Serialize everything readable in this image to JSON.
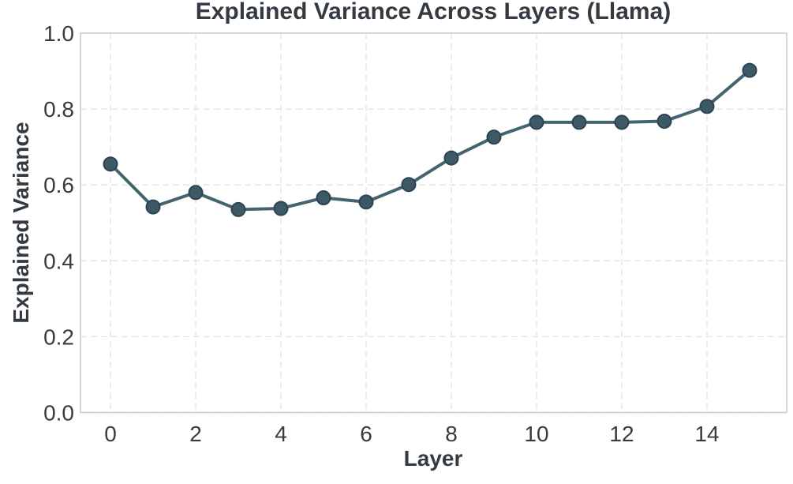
{
  "figure": {
    "background": "#ffffff"
  },
  "chart_data": {
    "type": "line",
    "title": "Explained Variance Across Layers (Llama)",
    "xlabel": "Layer",
    "ylabel": "Explained Variance",
    "x": [
      0,
      1,
      2,
      3,
      4,
      5,
      6,
      7,
      8,
      9,
      10,
      11,
      12,
      13,
      14,
      15
    ],
    "series": [
      {
        "name": "explained-variance",
        "values": [
          0.655,
          0.542,
          0.58,
          0.535,
          0.538,
          0.566,
          0.555,
          0.601,
          0.671,
          0.726,
          0.765,
          0.765,
          0.765,
          0.768,
          0.807,
          0.902
        ]
      }
    ],
    "xticks": [
      0,
      2,
      4,
      6,
      8,
      10,
      12,
      14
    ],
    "yticks": [
      0.0,
      0.2,
      0.4,
      0.6,
      0.8,
      1.0
    ],
    "ylim": [
      0.0,
      1.0
    ],
    "grid": {
      "style": "dashed",
      "visible": true
    },
    "legend": "none",
    "colors": {
      "line": "#466370",
      "marker_fill": "#3d5966",
      "marker_edge": "#2d4452",
      "grid": "#e2e2e2",
      "frame": "#c9c9c9",
      "title_text": "#333a41",
      "label_text": "#333a41",
      "tick_text": "#3a3a3a",
      "background": "#ffffff"
    }
  }
}
